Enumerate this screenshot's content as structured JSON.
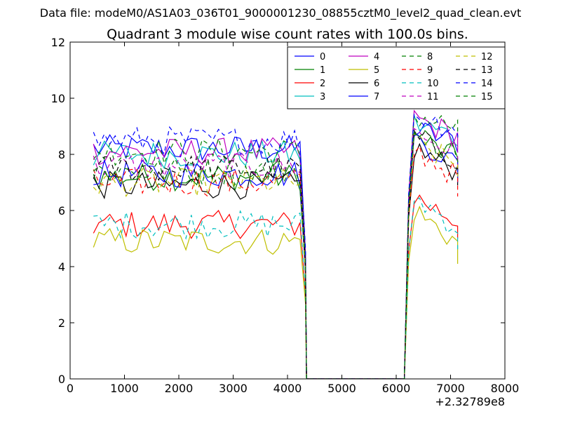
{
  "figure": {
    "suptitle": "Data file: modeM0/AS1A03_036T01_9000001230_08855cztM0_level2_quad_clean.evt"
  },
  "chart_data": {
    "type": "line",
    "title": "Quadrant 3 module wise count rates with 100.0s bins.",
    "xlabel": "",
    "ylabel": "",
    "x_offset_label": "+2.32789e8",
    "xlim": [
      0,
      8000
    ],
    "ylim": [
      0,
      12
    ],
    "xticks": [
      0,
      1000,
      2000,
      3000,
      4000,
      5000,
      6000,
      7000,
      8000
    ],
    "yticks": [
      0,
      2,
      4,
      6,
      8,
      10,
      12
    ],
    "legend_position": "top-right",
    "segments": [
      {
        "x_start": 430,
        "x_end": 4230,
        "step": 100
      },
      {
        "x_start": 6330,
        "x_end": 7130,
        "step": 100
      }
    ],
    "gap": {
      "x_drop": 4350,
      "x_rise": 6150,
      "y": 0
    },
    "series": [
      {
        "name": "0",
        "color": "#0000ff",
        "dash": "solid",
        "level": 8.2,
        "post": 8.9,
        "end": 8.1
      },
      {
        "name": "1",
        "color": "#008000",
        "dash": "solid",
        "level": 7.2,
        "post": 8.6,
        "end": 7.4
      },
      {
        "name": "2",
        "color": "#ff0000",
        "dash": "solid",
        "level": 5.5,
        "post": 6.5,
        "end": 5.0
      },
      {
        "name": "3",
        "color": "#00bfbf",
        "dash": "solid",
        "level": 8.0,
        "post": 9.1,
        "end": 8.3
      },
      {
        "name": "4",
        "color": "#bf00bf",
        "dash": "solid",
        "level": 8.1,
        "post": 9.3,
        "end": 8.2
      },
      {
        "name": "5",
        "color": "#bfbf00",
        "dash": "solid",
        "level": 4.9,
        "post": 6.0,
        "end": 4.1
      },
      {
        "name": "6",
        "color": "#000000",
        "dash": "solid",
        "level": 6.9,
        "post": 8.2,
        "end": 6.9
      },
      {
        "name": "7",
        "color": "#0000ff",
        "dash": "solid",
        "level": 7.3,
        "post": 8.6,
        "end": 7.0
      },
      {
        "name": "8",
        "color": "#008000",
        "dash": "dashed",
        "level": 8.1,
        "post": 9.4,
        "end": 8.6
      },
      {
        "name": "9",
        "color": "#ff0000",
        "dash": "dashed",
        "level": 7.0,
        "post": 8.2,
        "end": 6.5
      },
      {
        "name": "10",
        "color": "#00bfbf",
        "dash": "dashed",
        "level": 5.5,
        "post": 6.5,
        "end": 4.6
      },
      {
        "name": "11",
        "color": "#bf00bf",
        "dash": "dashed",
        "level": 7.6,
        "post": 8.8,
        "end": 7.5
      },
      {
        "name": "12",
        "color": "#bfbf00",
        "dash": "dashed",
        "level": 7.0,
        "post": 8.4,
        "end": 7.1
      },
      {
        "name": "13",
        "color": "#000000",
        "dash": "dashed",
        "level": 7.5,
        "post": 8.6,
        "end": 7.3
      },
      {
        "name": "14",
        "color": "#0000ff",
        "dash": "dashed",
        "level": 8.5,
        "post": 9.4,
        "end": 8.6
      },
      {
        "name": "15",
        "color": "#008000",
        "dash": "dashed",
        "level": 7.4,
        "post": 8.7,
        "end": 7.6
      }
    ]
  }
}
